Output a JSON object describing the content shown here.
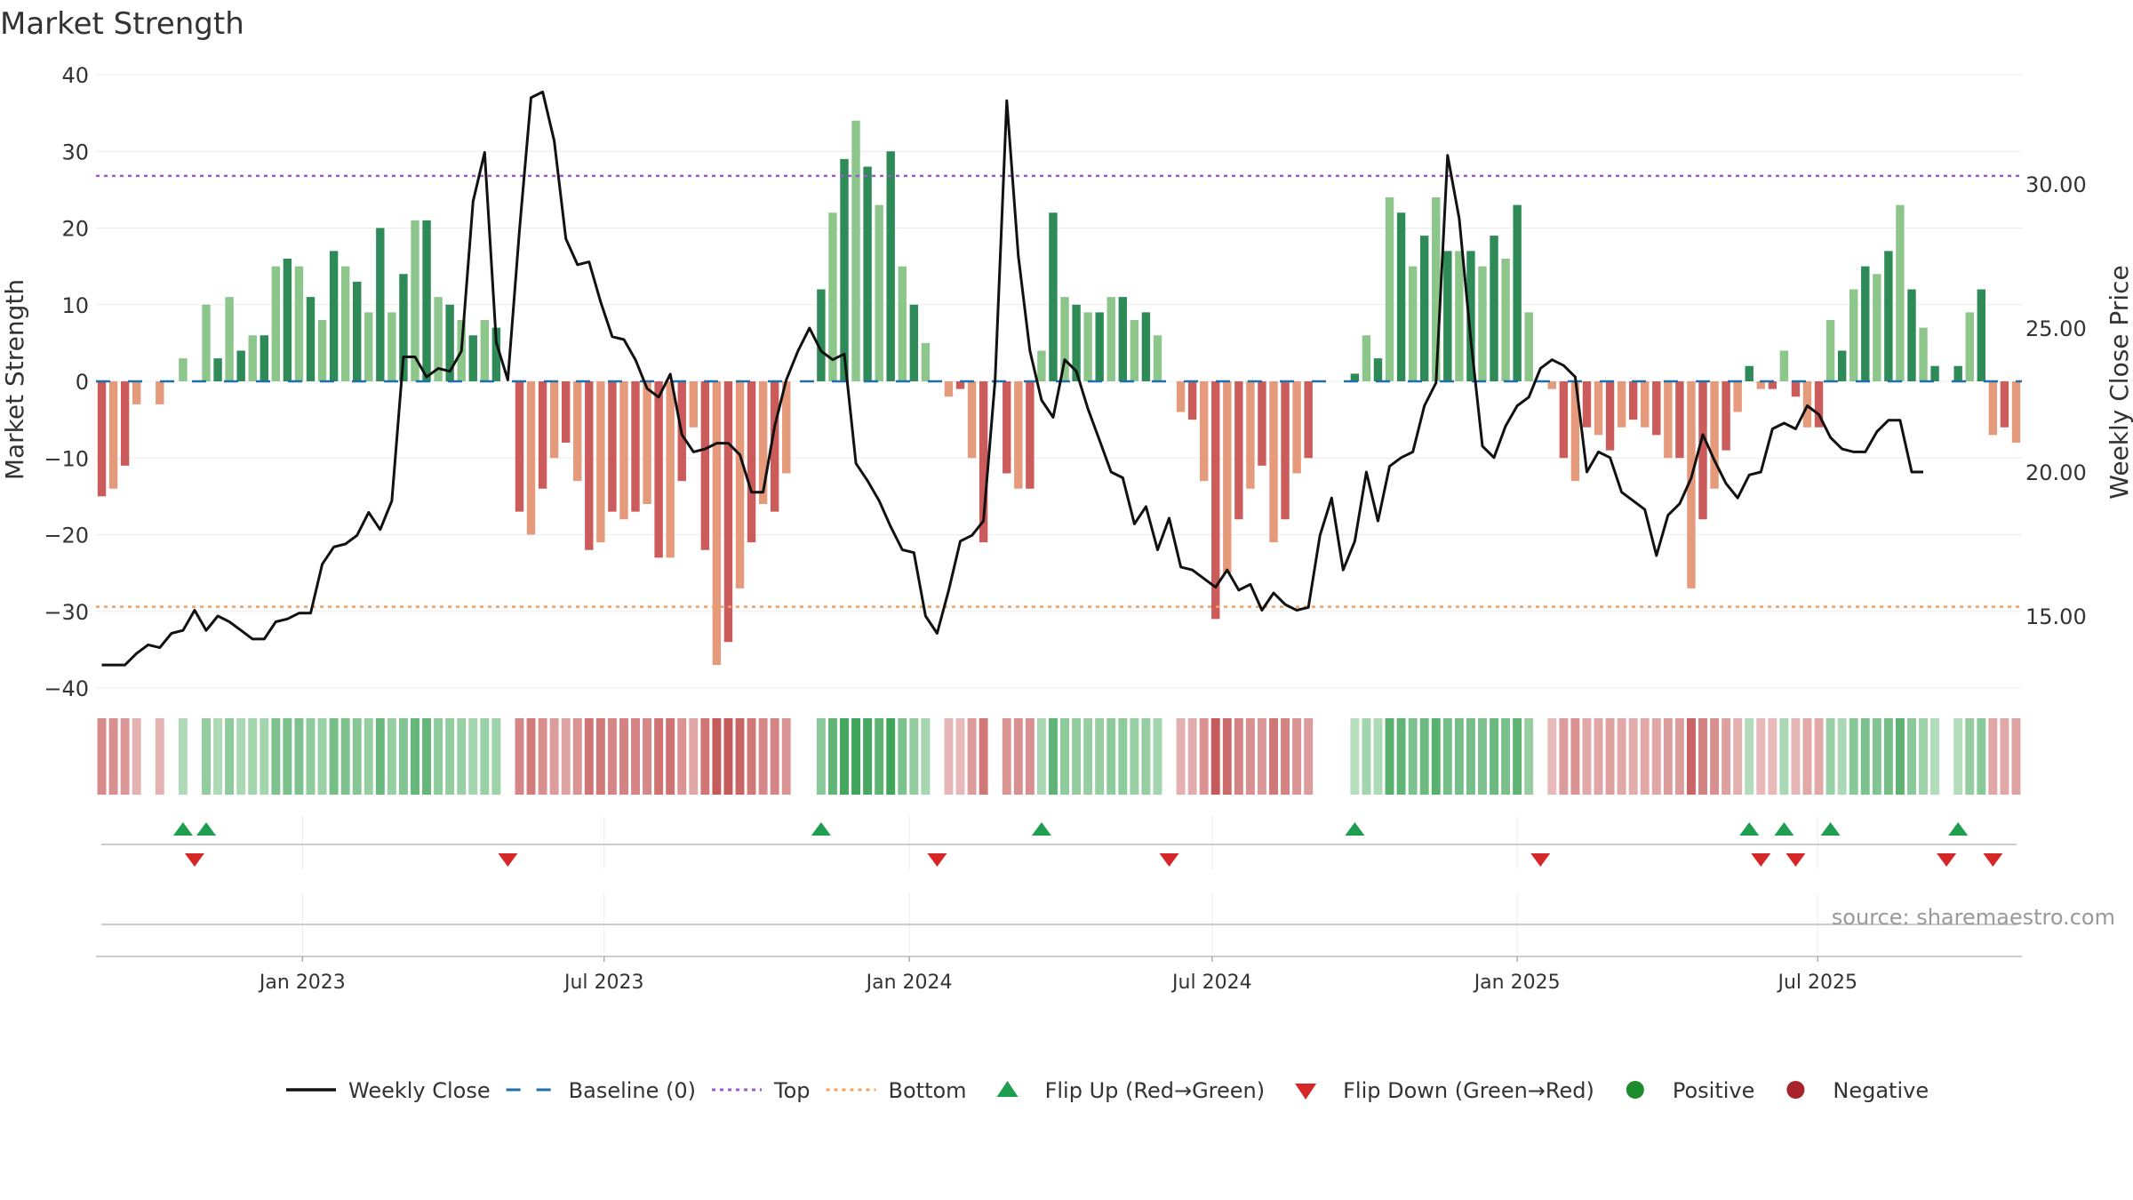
{
  "chart_data": {
    "type": "bar",
    "title": "Market Strength",
    "ylabel": "Market Strength",
    "y2label": "Weekly Close Price",
    "source": "source: sharemaestro.com",
    "ylim": [
      -40,
      40
    ],
    "y2lim": [
      12.5,
      33.8
    ],
    "yticks": [
      -40,
      -30,
      -20,
      -10,
      0,
      10,
      20,
      30,
      40
    ],
    "yticklabels": [
      "−40",
      "−30",
      "−20",
      "−10",
      "0",
      "10",
      "20",
      "30",
      "40"
    ],
    "y2ticks": [
      15,
      20,
      25,
      30
    ],
    "y2ticklabels": [
      "15.00",
      "20.00",
      "25.00",
      "30.00"
    ],
    "top_level": 26.8,
    "bottom_level": -29.4,
    "x_start": "2022-09-05",
    "xticks": [
      {
        "label": "Jan 2023",
        "week": 17.3
      },
      {
        "label": "Jul 2023",
        "week": 43.3
      },
      {
        "label": "Jan 2024",
        "week": 69.6
      },
      {
        "label": "Jul 2024",
        "week": 95.7
      },
      {
        "label": "Jan 2025",
        "week": 122.0
      },
      {
        "label": "Jul 2025",
        "week": 147.9
      }
    ],
    "strength": [
      -15,
      -14,
      -11,
      -3,
      0,
      -3,
      0,
      3,
      0,
      10,
      3,
      11,
      4,
      6,
      6,
      15,
      16,
      15,
      11,
      8,
      17,
      15,
      13,
      9,
      20,
      9,
      14,
      21,
      21,
      11,
      10,
      8,
      6,
      8,
      7,
      0,
      -17,
      -20,
      -14,
      -10,
      -8,
      -13,
      -22,
      -21,
      -17,
      -18,
      -17,
      -16,
      -23,
      -23,
      -13,
      -6,
      -22,
      -37,
      -34,
      -27,
      -21,
      -16,
      -17,
      -12,
      0,
      0,
      12,
      22,
      29,
      34,
      28,
      23,
      30,
      15,
      10,
      5,
      0,
      -2,
      -1,
      -10,
      -21,
      0,
      -12,
      -14,
      -14,
      4,
      22,
      11,
      10,
      9,
      9,
      11,
      11,
      8,
      9,
      6,
      0,
      -4,
      -5,
      -13,
      -31,
      -25,
      -18,
      -14,
      -11,
      -21,
      -18,
      -12,
      -10,
      0,
      0,
      0,
      1,
      6,
      3,
      24,
      22,
      15,
      19,
      24,
      17,
      17,
      17,
      15,
      19,
      16,
      23,
      9,
      0,
      -1,
      -10,
      -13,
      -6,
      -7,
      -9,
      -6,
      -5,
      -6,
      -7,
      -10,
      -10,
      -27,
      -18,
      -14,
      -9,
      -4,
      2,
      -1,
      -1,
      4,
      -2,
      -6,
      -6,
      8,
      4,
      12,
      15,
      14,
      17,
      23,
      12,
      7,
      2,
      0,
      2,
      9,
      12,
      -7,
      -6,
      -8
    ],
    "close": [
      13.3,
      13.3,
      13.3,
      13.7,
      14.0,
      13.9,
      14.4,
      14.5,
      15.2,
      14.5,
      15.0,
      14.8,
      14.5,
      14.2,
      14.2,
      14.8,
      14.9,
      15.1,
      15.1,
      16.8,
      17.4,
      17.5,
      17.8,
      18.6,
      18.0,
      19.0,
      24.0,
      24.0,
      23.3,
      23.6,
      23.5,
      24.2,
      29.4,
      31.1,
      24.5,
      23.2,
      28.4,
      33.0,
      33.2,
      31.5,
      28.1,
      27.2,
      27.3,
      25.9,
      24.7,
      24.6,
      23.9,
      22.9,
      22.6,
      23.4,
      21.3,
      20.7,
      20.8,
      21.0,
      21.0,
      20.6,
      19.3,
      19.3,
      21.6,
      23.2,
      24.2,
      25.0,
      24.2,
      23.9,
      24.1,
      20.3,
      19.7,
      19.0,
      18.1,
      17.3,
      17.2,
      15.0,
      14.4,
      15.9,
      17.6,
      17.8,
      18.3,
      23.2,
      32.9,
      27.5,
      24.2,
      22.5,
      21.9,
      23.9,
      23.5,
      22.2,
      21.1,
      20.0,
      19.8,
      18.2,
      18.8,
      17.3,
      18.4,
      16.7,
      16.6,
      16.3,
      16.0,
      16.6,
      15.9,
      16.1,
      15.2,
      15.8,
      15.4,
      15.2,
      15.3,
      17.8,
      19.1,
      16.6,
      17.6,
      20.0,
      18.3,
      20.2,
      20.5,
      20.7,
      22.3,
      23.1,
      31.0,
      28.8,
      24.6,
      20.9,
      20.5,
      21.6,
      22.3,
      22.6,
      23.6,
      23.9,
      23.7,
      23.3,
      20.0,
      20.7,
      20.5,
      19.3,
      19.0,
      18.7,
      17.1,
      18.5,
      18.9,
      19.8,
      21.3,
      20.4,
      19.6,
      19.1,
      19.9,
      20.0,
      21.5,
      21.7,
      21.5,
      22.3,
      22.0,
      21.2,
      20.8,
      20.7,
      20.7,
      21.4,
      21.8,
      21.8,
      20.0,
      20.0
    ]
  },
  "legend": [
    {
      "kind": "line-solid",
      "color": "#111111",
      "label": "Weekly Close"
    },
    {
      "kind": "line-dash",
      "color": "#1f6fa8",
      "label": "Baseline (0)"
    },
    {
      "kind": "line-dot",
      "color": "#9b59d0",
      "label": "Top"
    },
    {
      "kind": "line-dot",
      "color": "#f0a060",
      "label": "Bottom"
    },
    {
      "kind": "tri-up",
      "color": "#1e9e4e",
      "label": "Flip Up (Red→Green)"
    },
    {
      "kind": "tri-down",
      "color": "#d62728",
      "label": "Flip Down (Green→Red)"
    },
    {
      "kind": "dot",
      "color": "#1e8c2e",
      "label": "Positive"
    },
    {
      "kind": "dot",
      "color": "#a8232b",
      "label": "Negative"
    }
  ],
  "colors": {
    "pos_dark": "#2e8b57",
    "pos_light": "#8cc68a",
    "neg_dark": "#cc5c5c",
    "neg_light": "#e59a7c",
    "baseline": "#1f6fa8",
    "top": "#9b59d0",
    "bottom": "#f0a060",
    "flip_up": "#1e9e4e",
    "flip_down": "#d62728",
    "price": "#111111"
  }
}
